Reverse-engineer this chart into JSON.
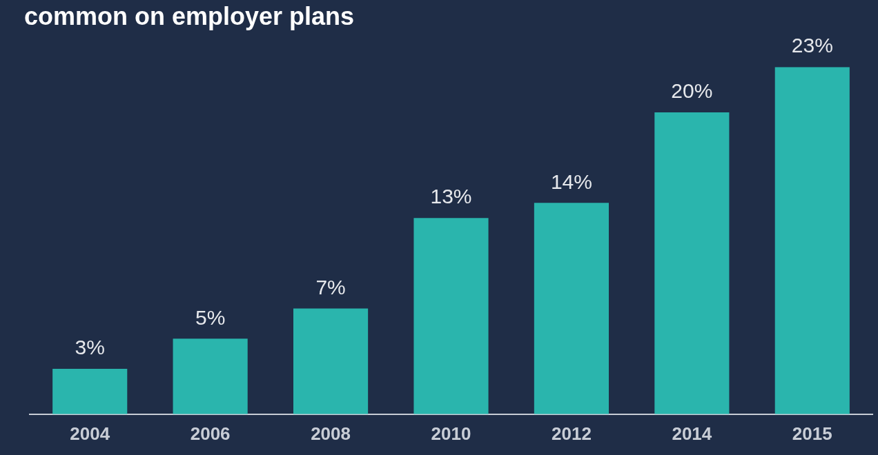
{
  "chart_data": {
    "type": "bar",
    "title": "common on employer plans",
    "categories": [
      "2004",
      "2006",
      "2008",
      "2010",
      "2012",
      "2014",
      "2015"
    ],
    "values": [
      3,
      5,
      7,
      13,
      14,
      20,
      23
    ],
    "value_labels": [
      "3%",
      "5%",
      "7%",
      "13%",
      "14%",
      "20%",
      "23%"
    ],
    "color": "#2ab5ad",
    "relative": false,
    "grid": false,
    "legend": false
  }
}
